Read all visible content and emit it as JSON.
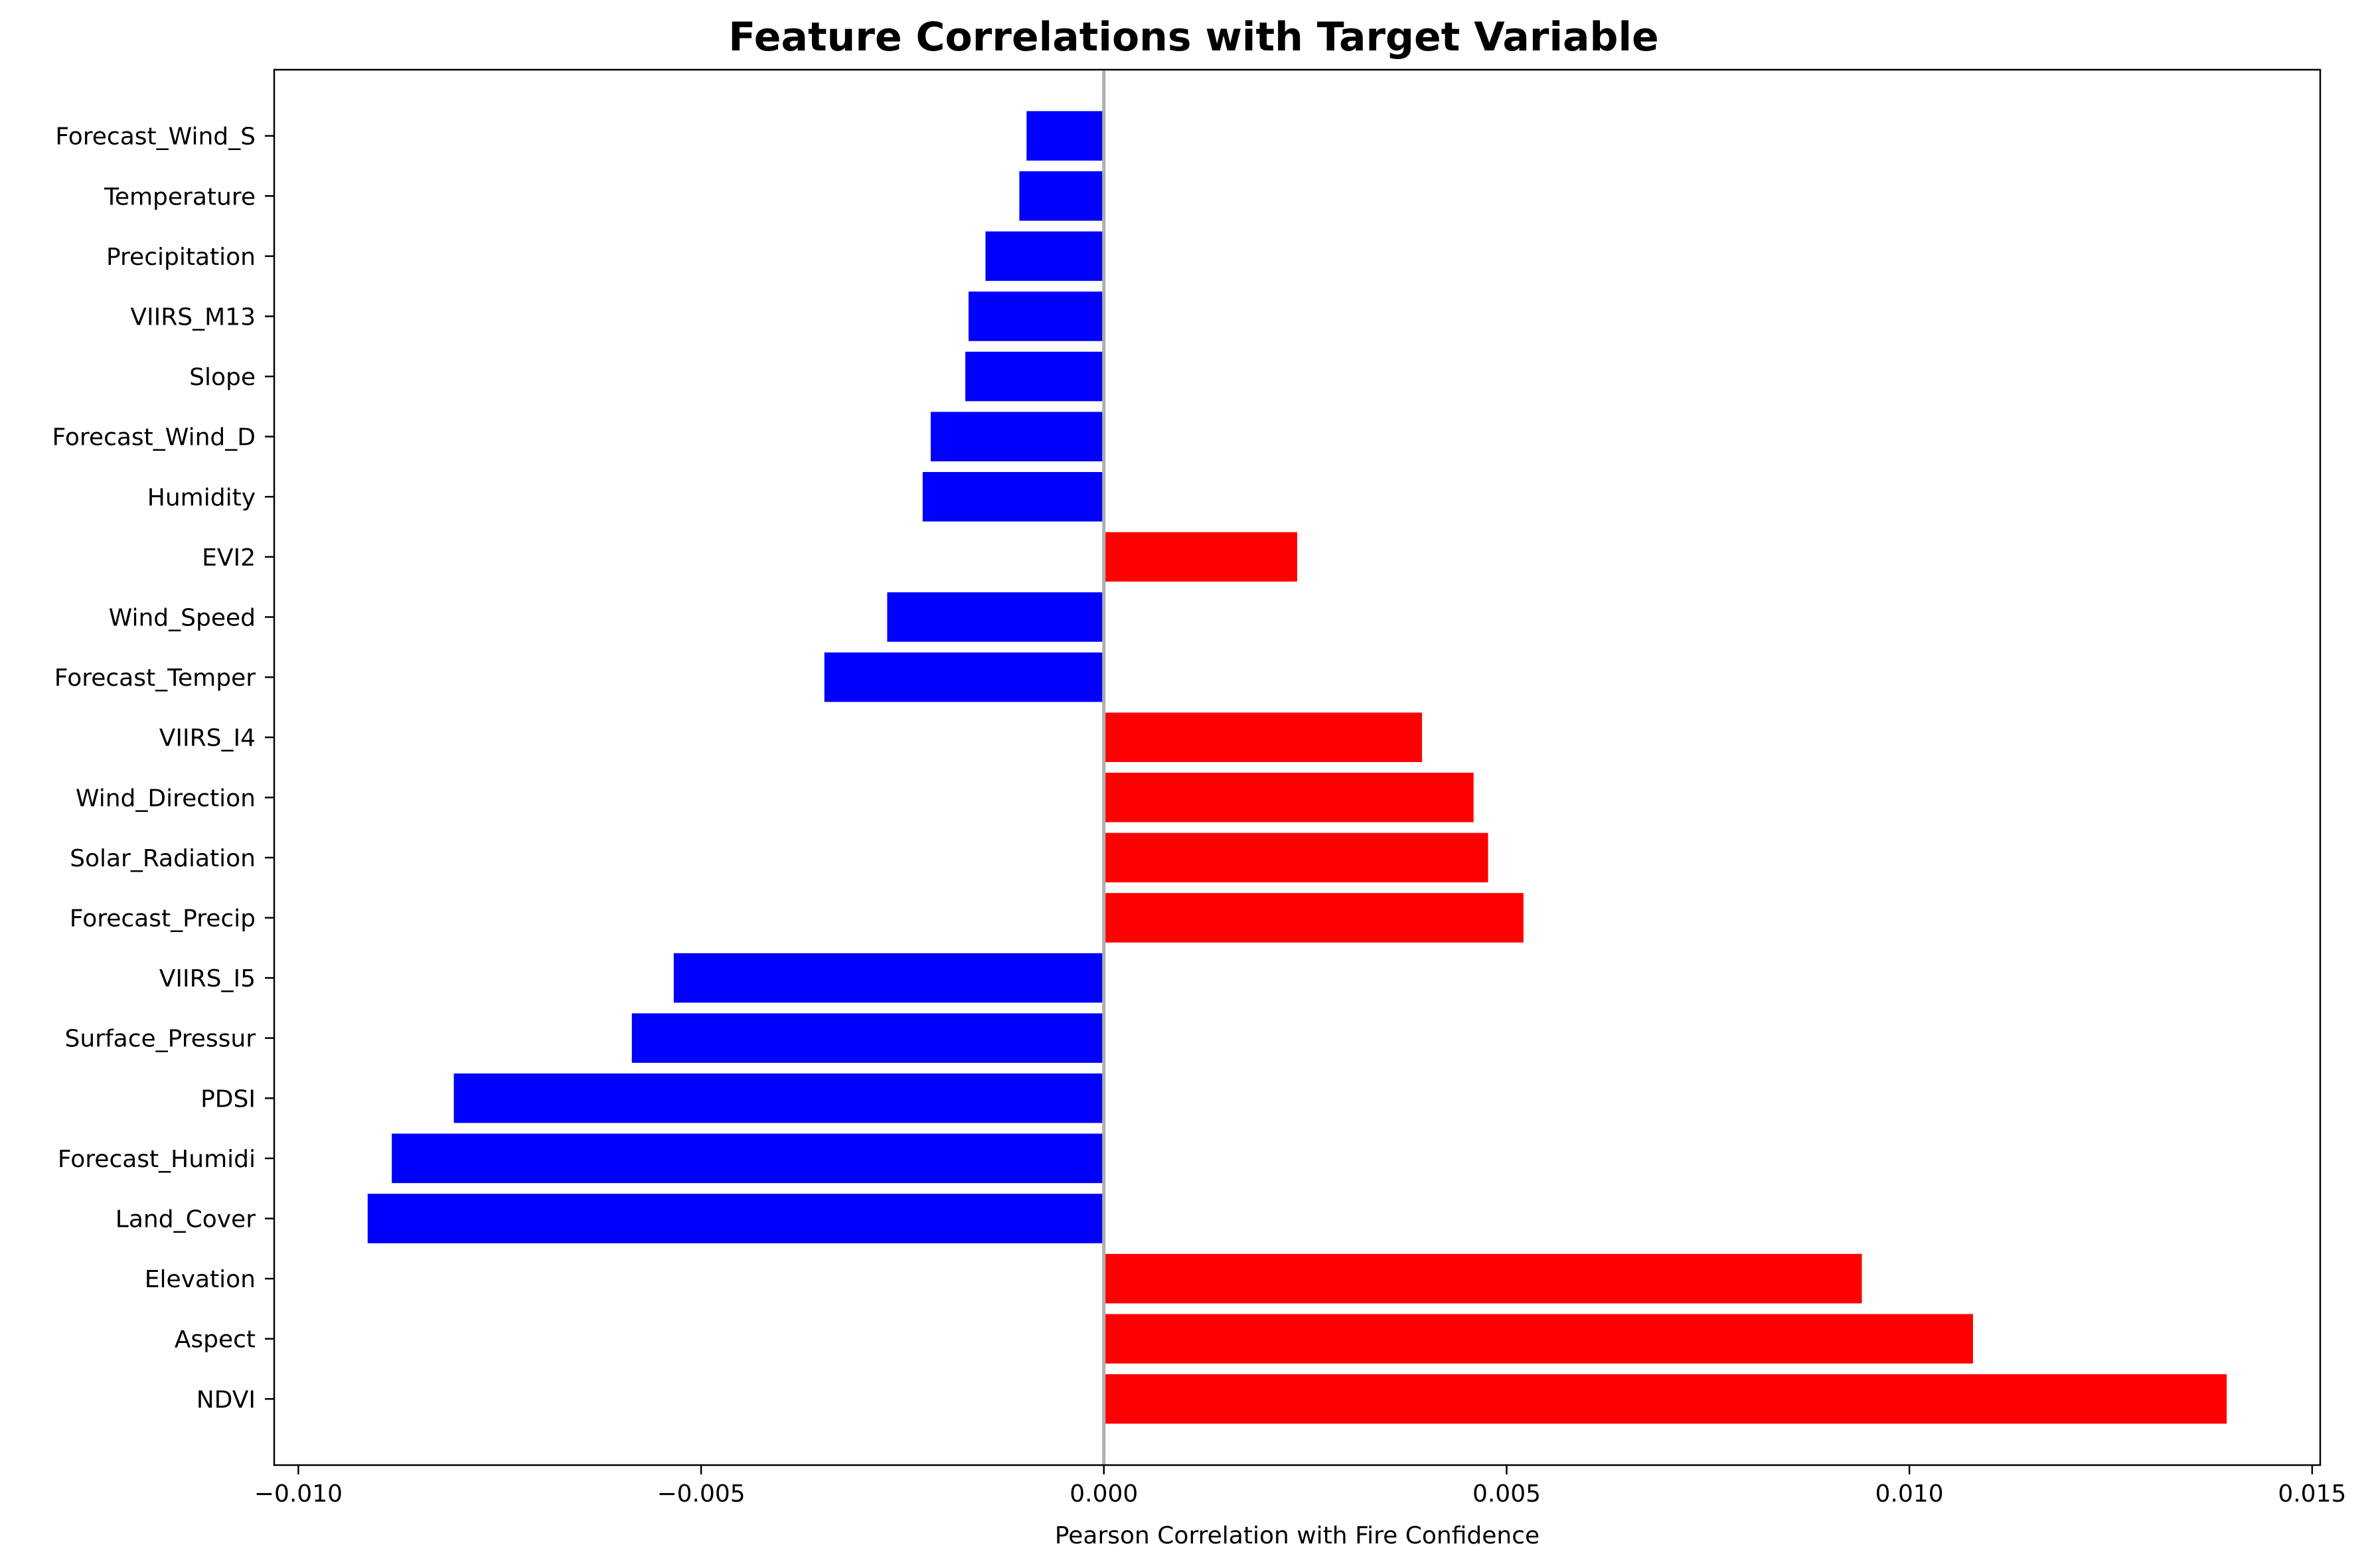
{
  "chart_data": {
    "type": "bar",
    "orientation": "horizontal",
    "title": "Feature Correlations with Target Variable",
    "xlabel": "Pearson Correlation with Fire Confidence",
    "ylabel": "",
    "xlim": [
      -0.0103,
      0.0151
    ],
    "xticks": [
      -0.01,
      -0.005,
      0.0,
      0.005,
      0.01,
      0.015
    ],
    "xtick_labels": [
      "−0.010",
      "−0.005",
      "0.000",
      "0.005",
      "0.010",
      "0.015"
    ],
    "grid": false,
    "positive_color": "#ff0000",
    "negative_color": "#0000ff",
    "zero_line_color": "#b0b0b0",
    "categories": [
      "NDVI",
      "Aspect",
      "Elevation",
      "Land_Cover",
      "Forecast_Humidi",
      "PDSI",
      "Surface_Pressur",
      "VIIRS_I5",
      "Forecast_Precip",
      "Solar_Radiation",
      "Wind_Direction",
      "VIIRS_I4",
      "Forecast_Temper",
      "Wind_Speed",
      "EVI2",
      "Humidity",
      "Forecast_Wind_D",
      "Slope",
      "VIIRS_M13",
      "Precipitation",
      "Temperature",
      "Forecast_Wind_S"
    ],
    "values": [
      0.01395,
      0.0108,
      0.00942,
      -0.00915,
      -0.00885,
      -0.00808,
      -0.00587,
      -0.00535,
      0.00522,
      0.00478,
      0.0046,
      0.00396,
      -0.00348,
      -0.0027,
      0.00241,
      -0.00226,
      -0.00216,
      -0.00173,
      -0.00169,
      -0.00148,
      -0.00106,
      -0.00097
    ]
  }
}
